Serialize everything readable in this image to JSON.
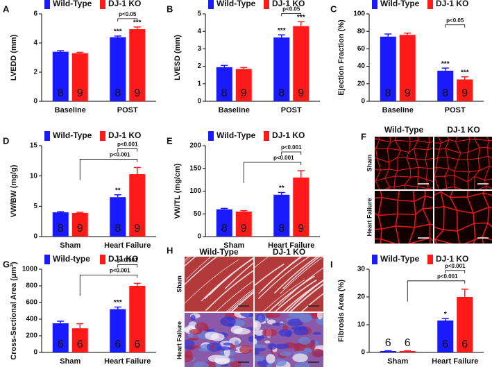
{
  "chart_data": [
    {
      "type": "bar",
      "panel": "A",
      "ylabel": "LVEDD (mm)",
      "categories": [
        "Baseline",
        "POST"
      ],
      "ylim": [
        0,
        6
      ],
      "yticks": [
        0,
        2,
        4,
        6
      ],
      "series": [
        {
          "name": "Wild-Type",
          "color": "#1a1aff",
          "values": [
            3.4,
            4.4
          ],
          "errors": [
            0.07,
            0.08
          ],
          "n": [
            8,
            8
          ],
          "stars": [
            null,
            "***"
          ]
        },
        {
          "name": "DJ-1 KO",
          "color": "#ff1a1a",
          "values": [
            3.3,
            4.95
          ],
          "errors": [
            0.06,
            0.15
          ],
          "n": [
            9,
            9
          ],
          "stars": [
            null,
            "***"
          ]
        }
      ],
      "brackets": [
        "p<0.05"
      ]
    },
    {
      "type": "bar",
      "panel": "B",
      "ylabel": "LVESD (mm)",
      "categories": [
        "Baseline",
        "POST"
      ],
      "ylim": [
        0,
        5
      ],
      "yticks": [
        0,
        1,
        2,
        3,
        4,
        5
      ],
      "series": [
        {
          "name": "Wild-Type",
          "color": "#1a1aff",
          "values": [
            1.95,
            3.65
          ],
          "errors": [
            0.1,
            0.15
          ],
          "n": [
            8,
            8
          ],
          "stars": [
            null,
            "***"
          ]
        },
        {
          "name": "DJ-1 KO",
          "color": "#ff1a1a",
          "values": [
            1.85,
            4.3
          ],
          "errors": [
            0.08,
            0.25
          ],
          "n": [
            9,
            9
          ],
          "stars": [
            null,
            "***"
          ]
        }
      ],
      "brackets": [
        "p<0.05"
      ]
    },
    {
      "type": "bar",
      "panel": "C",
      "ylabel": "Ejection Fraction (%)",
      "categories": [
        "Baseline",
        "POST"
      ],
      "ylim": [
        0,
        100
      ],
      "yticks": [
        0,
        20,
        40,
        60,
        80,
        100
      ],
      "series": [
        {
          "name": "Wild-Type",
          "color": "#1a1aff",
          "values": [
            74,
            35
          ],
          "errors": [
            3,
            3
          ],
          "n": [
            8,
            8
          ],
          "stars": [
            null,
            "***"
          ]
        },
        {
          "name": "DJ-1 KO",
          "color": "#ff1a1a",
          "values": [
            76,
            25
          ],
          "errors": [
            2,
            3
          ],
          "n": [
            9,
            9
          ],
          "stars": [
            null,
            "***"
          ]
        }
      ],
      "brackets": [
        "p<0.05"
      ]
    },
    {
      "type": "bar",
      "panel": "D",
      "ylabel": "VW/BW (mg/g)",
      "categories": [
        "Sham",
        "Heart Failure"
      ],
      "ylim": [
        0,
        15
      ],
      "yticks": [
        0,
        5,
        10,
        15
      ],
      "series": [
        {
          "name": "Wild-Type",
          "color": "#1a1aff",
          "values": [
            4.0,
            6.5
          ],
          "errors": [
            0.1,
            0.4
          ],
          "n": [
            8,
            8
          ],
          "stars": [
            null,
            "**"
          ]
        },
        {
          "name": "DJ-1 KO",
          "color": "#ff1a1a",
          "values": [
            3.9,
            10.3
          ],
          "errors": [
            0.1,
            1.1
          ],
          "n": [
            9,
            9
          ],
          "stars": [
            null,
            null
          ]
        }
      ],
      "brackets": [
        "p<0.001",
        "p<0.001"
      ]
    },
    {
      "type": "bar",
      "panel": "E",
      "ylabel": "VW/TL (mg/cm)",
      "categories": [
        "Sham",
        "Heart Failure"
      ],
      "ylim": [
        0,
        200
      ],
      "yticks": [
        0,
        50,
        100,
        150,
        200
      ],
      "series": [
        {
          "name": "Wild-Type",
          "color": "#1a1aff",
          "values": [
            60,
            92
          ],
          "errors": [
            2,
            5
          ],
          "n": [
            8,
            8
          ],
          "stars": [
            null,
            "**"
          ]
        },
        {
          "name": "DJ-1 KO",
          "color": "#ff1a1a",
          "values": [
            55,
            130
          ],
          "errors": [
            2,
            15
          ],
          "n": [
            9,
            9
          ],
          "stars": [
            null,
            null
          ]
        }
      ],
      "brackets": [
        "p<0.001",
        "p<0.001"
      ]
    },
    {
      "type": "micrograph",
      "panel": "F",
      "columns": [
        "Wild-Type",
        "DJ-1 KO"
      ],
      "rows": [
        "Sham",
        "Heart Failure"
      ]
    },
    {
      "type": "bar",
      "panel": "G",
      "ylabel": "Cross-Sectional Area (μm²)",
      "categories": [
        "Sham",
        "Heart Failure"
      ],
      "ylim": [
        0,
        1000
      ],
      "yticks": [
        0,
        200,
        400,
        600,
        800,
        1000
      ],
      "series": [
        {
          "name": "Wild-type",
          "color": "#1a1aff",
          "values": [
            350,
            520
          ],
          "errors": [
            25,
            25
          ],
          "n": [
            6,
            6
          ],
          "stars": [
            null,
            "***"
          ]
        },
        {
          "name": "DJ1 KO",
          "color": "#ff1a1a",
          "values": [
            290,
            800
          ],
          "errors": [
            55,
            30
          ],
          "n": [
            6,
            6
          ],
          "stars": [
            null,
            null
          ]
        }
      ],
      "brackets": [
        "p<0.001",
        "p<0.001"
      ]
    },
    {
      "type": "micrograph",
      "panel": "H",
      "columns": [
        "Wild-Type",
        "DJ-1 KO"
      ],
      "rows": [
        "Sham",
        "Heart Failure"
      ]
    },
    {
      "type": "bar",
      "panel": "I",
      "ylabel": "Fibrosis Area (%)",
      "categories": [
        "Sham",
        "Heart Failure"
      ],
      "ylim": [
        0,
        30
      ],
      "yticks": [
        0,
        10,
        20,
        30
      ],
      "series": [
        {
          "name": "Wild-Type",
          "color": "#1a1aff",
          "values": [
            0.5,
            11.5
          ],
          "errors": [
            0.1,
            0.7
          ],
          "n": [
            6,
            6
          ],
          "stars": [
            null,
            "*"
          ]
        },
        {
          "name": "DJ-1 KO",
          "color": "#ff1a1a",
          "values": [
            0.5,
            20
          ],
          "errors": [
            0.1,
            2.8
          ],
          "n": [
            6,
            6
          ],
          "stars": [
            null,
            null
          ]
        }
      ],
      "brackets": [
        "p<0.001",
        "p<0.001"
      ]
    }
  ]
}
